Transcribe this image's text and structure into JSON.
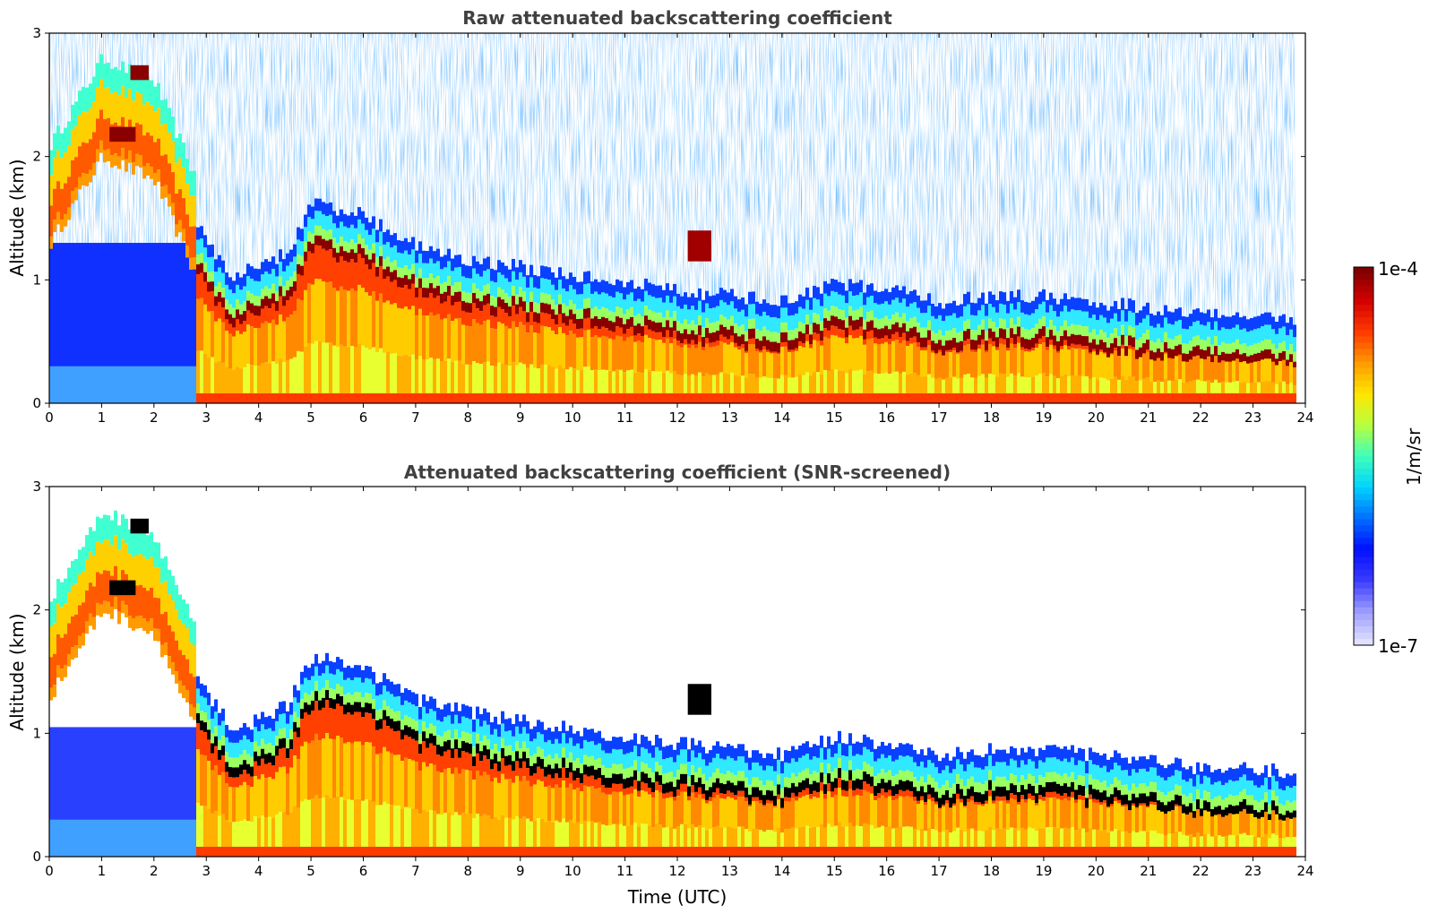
{
  "chart_data": [
    {
      "type": "heatmap",
      "title": "Raw attenuated backscattering coefficient",
      "xlabel": "",
      "ylabel": "Altitude (km)",
      "xlim": [
        0,
        24
      ],
      "ylim": [
        0,
        3
      ],
      "xticks": [
        "0",
        "1",
        "2",
        "3",
        "4",
        "5",
        "6",
        "7",
        "8",
        "9",
        "10",
        "11",
        "12",
        "13",
        "14",
        "15",
        "16",
        "17",
        "18",
        "19",
        "20",
        "21",
        "22",
        "23",
        "24"
      ],
      "yticks": [
        "0",
        "1",
        "2",
        "3"
      ],
      "screened": false,
      "layer_top_profile": {
        "time": [
          0,
          1,
          2,
          2.8,
          3.5,
          4.5,
          5,
          6,
          7,
          8,
          9,
          10,
          11,
          12,
          13,
          14,
          15,
          16,
          17,
          18,
          19,
          20,
          21,
          22,
          23,
          23.8
        ],
        "altitude": [
          1.5,
          2.2,
          2.0,
          1.2,
          0.8,
          1.0,
          1.4,
          1.3,
          1.05,
          0.95,
          0.88,
          0.82,
          0.75,
          0.7,
          0.65,
          0.6,
          0.75,
          0.7,
          0.6,
          0.65,
          0.65,
          0.6,
          0.55,
          0.5,
          0.5,
          0.45
        ]
      }
    },
    {
      "type": "heatmap",
      "title": "Attenuated backscattering coefficient (SNR-screened)",
      "xlabel": "Time (UTC)",
      "ylabel": "Altitude (km)",
      "xlim": [
        0,
        24
      ],
      "ylim": [
        0,
        3
      ],
      "xticks": [
        "0",
        "1",
        "2",
        "3",
        "4",
        "5",
        "6",
        "7",
        "8",
        "9",
        "10",
        "11",
        "12",
        "13",
        "14",
        "15",
        "16",
        "17",
        "18",
        "19",
        "20",
        "21",
        "22",
        "23",
        "24"
      ],
      "yticks": [
        "0",
        "1",
        "2",
        "3"
      ],
      "screened": true
    }
  ],
  "colorbar": {
    "label": "1/m/sr",
    "max_label": "1e-4",
    "min_label": "1e-7",
    "colors": [
      "#7f0000",
      "#d40000",
      "#ff3a00",
      "#ff9a00",
      "#ffe600",
      "#b8ff40",
      "#40ffb8",
      "#00d4ff",
      "#0070ff",
      "#0010ff",
      "#3a3aff",
      "#9a9aff",
      "#e0e0ff"
    ]
  }
}
